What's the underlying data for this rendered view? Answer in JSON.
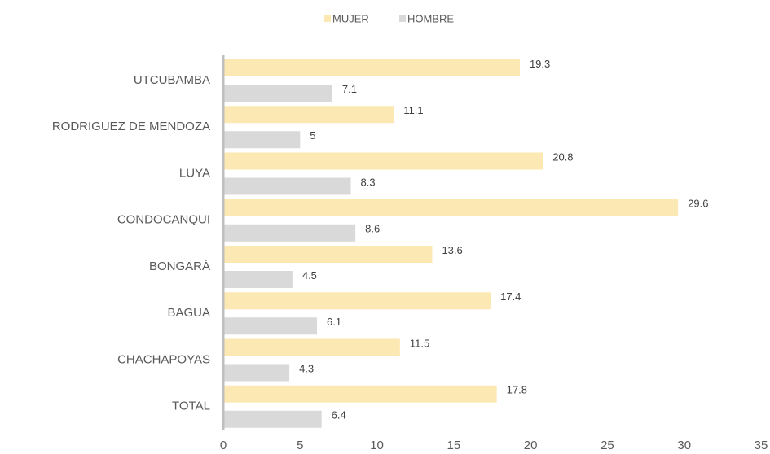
{
  "chart_data": {
    "type": "bar",
    "orientation": "horizontal",
    "categories": [
      "UTCUBAMBA",
      "RODRIGUEZ DE MENDOZA",
      "LUYA",
      "CONDOCANQUI",
      "BONGARÁ",
      "BAGUA",
      "CHACHAPOYAS",
      "TOTAL"
    ],
    "series": [
      {
        "name": "MUJER",
        "color": "#fce8b2",
        "values": [
          19.3,
          11.1,
          20.8,
          29.6,
          13.6,
          17.4,
          11.5,
          17.8
        ]
      },
      {
        "name": "HOMBRE",
        "color": "#d9d9d9",
        "values": [
          7.1,
          5,
          8.3,
          8.6,
          4.5,
          6.1,
          4.3,
          6.4
        ]
      }
    ],
    "xlim": [
      0,
      35
    ],
    "xticks": [
      0,
      5,
      10,
      15,
      20,
      25,
      30,
      35
    ],
    "grid": false,
    "legend": "top"
  }
}
